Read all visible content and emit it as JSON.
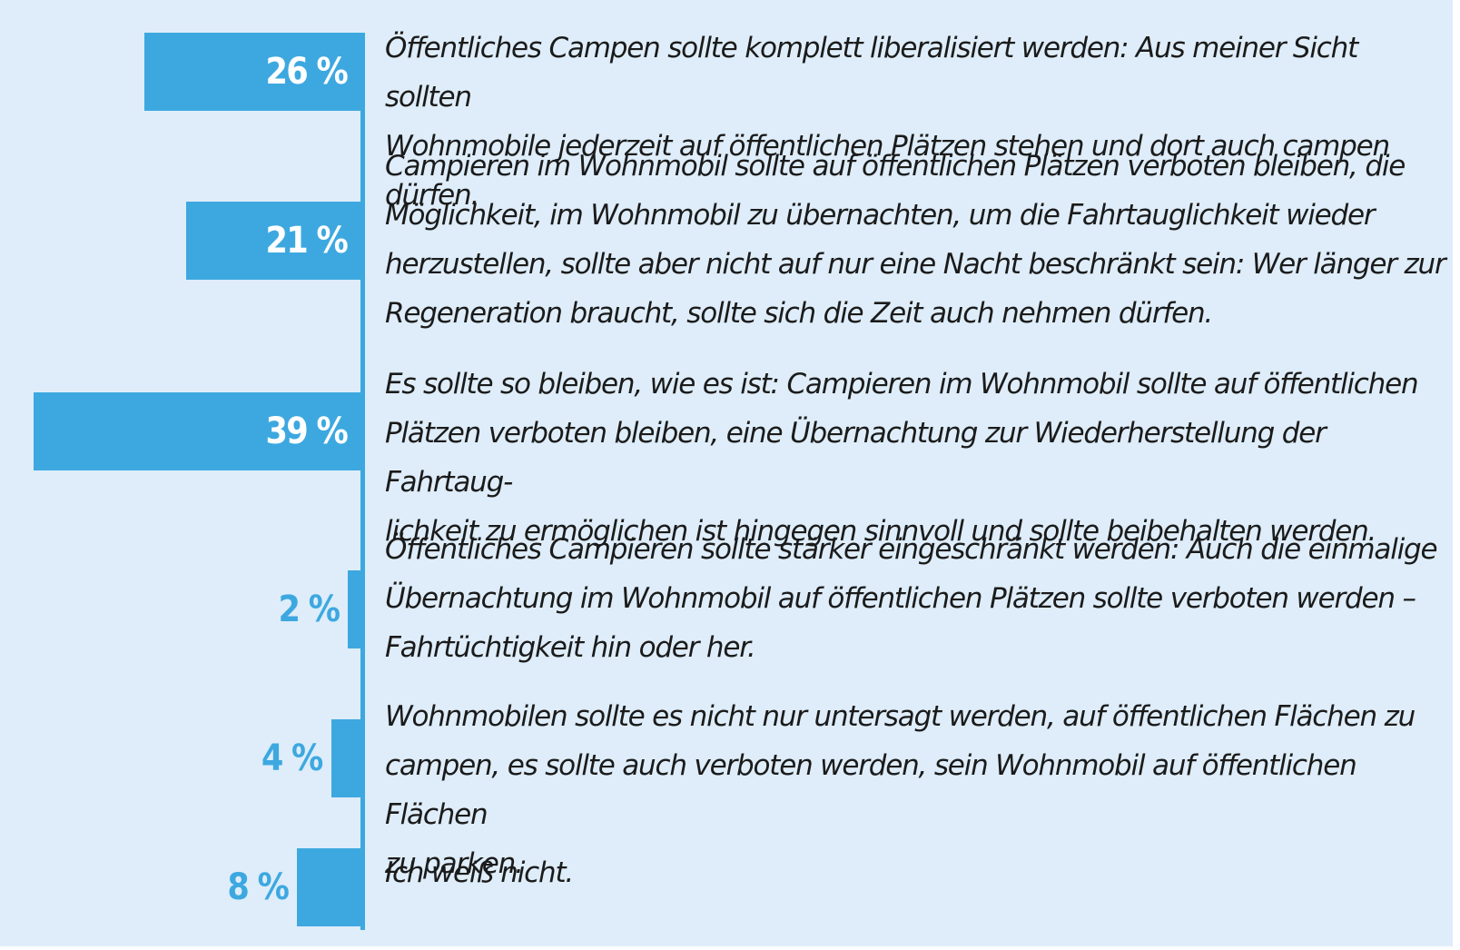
{
  "chart_data": {
    "type": "bar",
    "orientation": "horizontal",
    "unit": "%",
    "xlim": [
      0,
      39
    ],
    "items": [
      {
        "value": 26,
        "label": "26 %",
        "text": "Öffentliches Campen sollte komplett liberalisiert werden: Aus meiner Sicht sollten\nWohnmobile jederzeit auf öffentlichen Plätzen stehen und dort auch campen dürfen."
      },
      {
        "value": 21,
        "label": "21 %",
        "text": "Campieren im Wohnmobil sollte auf öffentlichen Plätzen verboten bleiben, die\nMöglichkeit, im Wohnmobil zu übernachten, um die Fahrtauglichkeit wieder\nherzustellen, sollte aber nicht auf nur eine Nacht beschränkt sein: Wer länger zur\nRegeneration braucht, sollte sich die Zeit auch nehmen dürfen."
      },
      {
        "value": 39,
        "label": "39 %",
        "text": "Es sollte so bleiben, wie es ist: Campieren im Wohnmobil sollte auf öffentlichen\nPlätzen verboten bleiben, eine Übernachtung zur Wiederherstellung der Fahrtaug-\nlichkeit zu ermöglichen ist hingegen sinnvoll und sollte beibehalten werden."
      },
      {
        "value": 2,
        "label": "2 %",
        "text": "Öffentliches Campieren sollte stärker eingeschränkt werden: Auch die einmalige\nÜbernachtung im Wohnmobil auf öffentlichen Plätzen sollte verboten werden –\nFahrtüchtigkeit hin oder her."
      },
      {
        "value": 4,
        "label": "4 %",
        "text": "Wohnmobilen sollte es nicht nur untersagt werden, auf öffentlichen Flächen zu\ncampen, es sollte auch verboten werden, sein Wohnmobil auf öffentlichen Flächen\nzu parken."
      },
      {
        "value": 8,
        "label": "8 %",
        "text": "Ich weiß nicht."
      }
    ]
  },
  "colors": {
    "bar": "#3da8e0",
    "background": "#deedf9",
    "label_inside": "#ffffff",
    "label_outside": "#3da8e0",
    "text": "#1b1b1b"
  }
}
